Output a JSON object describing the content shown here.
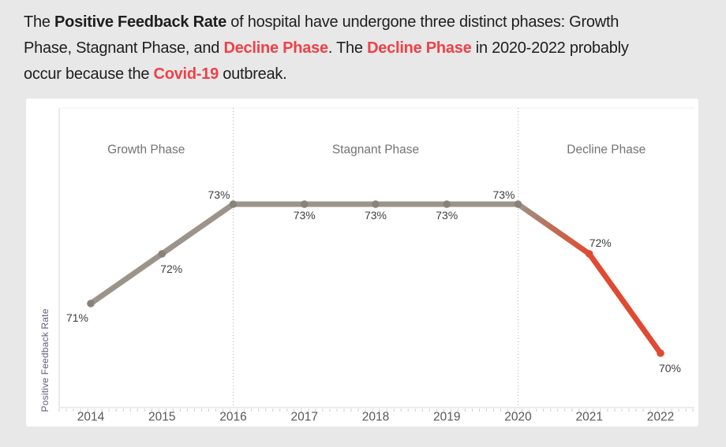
{
  "page": {
    "background": "#e8e8e8"
  },
  "intro": {
    "colors": {
      "text": "#1e1e1e",
      "red": "#ef4147"
    },
    "lines": [
      {
        "segments": [
          {
            "text": "The ",
            "style": "normal"
          },
          {
            "text": "Positive Feedback Rate",
            "style": "bold"
          },
          {
            "text": " of hospital have undergone three distinct phases: Growth",
            "style": "normal"
          }
        ]
      },
      {
        "segments": [
          {
            "text": "Phase, Stagnant Phase, and ",
            "style": "normal"
          },
          {
            "text": "Decline Phase",
            "style": "bold-red"
          },
          {
            "text": ". The ",
            "style": "normal"
          },
          {
            "text": "Decline Phase",
            "style": "bold-red"
          },
          {
            "text": " in 2020-2022 probably",
            "style": "normal"
          }
        ]
      },
      {
        "segments": [
          {
            "text": "occur because the ",
            "style": "normal"
          },
          {
            "text": "Covid-19",
            "style": "bold-red"
          },
          {
            "text": " outbreak.",
            "style": "normal"
          }
        ]
      }
    ]
  },
  "chart_data": {
    "type": "line",
    "title": "",
    "xlabel": "",
    "ylabel": "Positive Feedback Rate",
    "categories": [
      "2014",
      "2015",
      "2016",
      "2017",
      "2018",
      "2019",
      "2020",
      "2021",
      "2022"
    ],
    "series": [
      {
        "name": "Positive Feedback Rate",
        "values": [
          71,
          72,
          73,
          73,
          73,
          73,
          73,
          72,
          70
        ]
      }
    ],
    "data_labels": [
      "71%",
      "72%",
      "73%",
      "73%",
      "73%",
      "73%",
      "73%",
      "72%",
      "70%"
    ],
    "label_positions": [
      "below-left",
      "below-right",
      "above-left",
      "below",
      "below",
      "below",
      "above-left",
      "above-right",
      "below-right"
    ],
    "ylim": [
      68.9,
      74.9
    ],
    "grid": false,
    "legend": "none",
    "phases": [
      {
        "label": "Growth Phase",
        "from": "2014",
        "to": "2016"
      },
      {
        "label": "Stagnant Phase",
        "from": "2016",
        "to": "2020"
      },
      {
        "label": "Decline Phase",
        "from": "2020",
        "to": "2022"
      }
    ],
    "dividers": [
      "2016",
      "2020"
    ],
    "decline_from": "2020",
    "colors": {
      "line": "#9c938b",
      "marker": "#8a8178",
      "decline": "#e04a32",
      "divider": "#b3b3b3",
      "axis": "#d9d9d9",
      "tick": "#cbcbcb",
      "plot_border": "#f0f0f0",
      "phase_label": "#737373",
      "year_label": "#56575c",
      "data_label": "#3d3d3d",
      "ylabel": "#605f7e"
    }
  }
}
